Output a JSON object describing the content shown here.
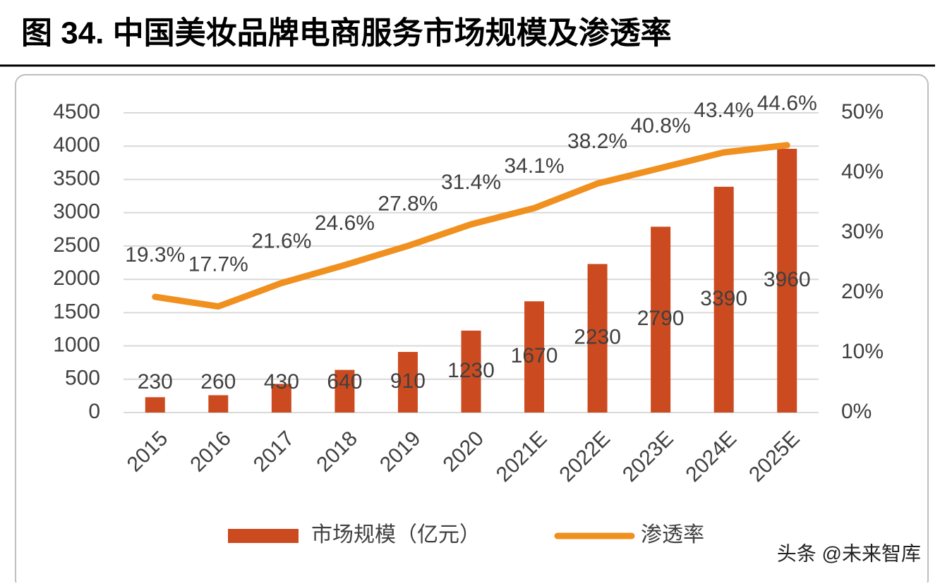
{
  "chart_data": {
    "type": "bar-line",
    "title": "图 34. 中国美妆品牌电商服务市场规模及渗透率",
    "categories": [
      "2015",
      "2016",
      "2017",
      "2018",
      "2019",
      "2020",
      "2021E",
      "2022E",
      "2023E",
      "2024E",
      "2025E"
    ],
    "series": [
      {
        "name": "市场规模（亿元）",
        "type": "bar",
        "axis": "y",
        "color": "#cc4a1f",
        "values": [
          230,
          260,
          430,
          640,
          910,
          1230,
          1670,
          2230,
          2790,
          3390,
          3960
        ]
      },
      {
        "name": "渗透率",
        "type": "line",
        "axis": "y2",
        "color": "#f0901f",
        "values": [
          19.3,
          17.7,
          21.6,
          24.6,
          27.8,
          31.4,
          34.1,
          38.2,
          40.8,
          43.4,
          44.6
        ],
        "value_labels": [
          "19.3%",
          "17.7%",
          "21.6%",
          "24.6%",
          "27.8%",
          "31.4%",
          "34.1%",
          "38.2%",
          "40.8%",
          "43.4%",
          "44.6%"
        ]
      }
    ],
    "ylim": [
      0,
      4500
    ],
    "yticks": [
      0,
      500,
      1000,
      1500,
      2000,
      2500,
      3000,
      3500,
      4000,
      4500
    ],
    "y2lim": [
      0,
      50
    ],
    "y2ticks": [
      {
        "value": 0,
        "label": "0%"
      },
      {
        "value": 10,
        "label": "10%"
      },
      {
        "value": 20,
        "label": "20%"
      },
      {
        "value": 30,
        "label": "30%"
      },
      {
        "value": 40,
        "label": "40%"
      },
      {
        "value": 50,
        "label": "50%"
      }
    ],
    "grid": true,
    "legend": "bottom",
    "watermark": "头条 @未来智库"
  }
}
